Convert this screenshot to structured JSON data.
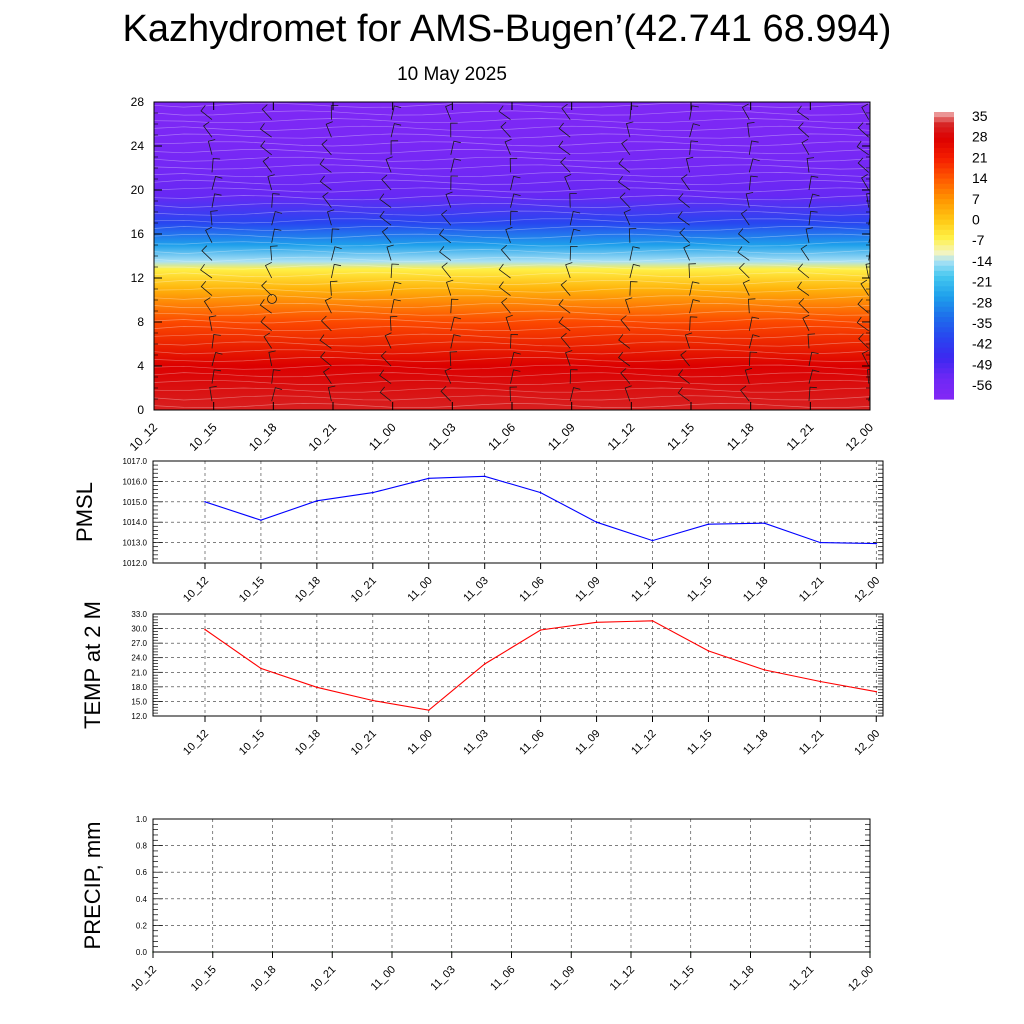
{
  "title": "Kazhydromet for AMS-Bugen’(42.741 68.994)",
  "subtitle": "10 May 2025",
  "time_labels": [
    "10_12",
    "10_15",
    "10_18",
    "10_21",
    "11_00",
    "11_03",
    "11_06",
    "11_09",
    "11_12",
    "11_15",
    "11_18",
    "11_21",
    "12_00"
  ],
  "chart_data": [
    {
      "type": "heatmap",
      "name": "temperature-height-section",
      "x": [
        "10_12",
        "10_15",
        "10_18",
        "10_21",
        "11_00",
        "11_03",
        "11_06",
        "11_09",
        "11_12",
        "11_15",
        "11_18",
        "11_21",
        "12_00"
      ],
      "ylim": [
        0,
        28
      ],
      "yticks": [
        0,
        4,
        8,
        12,
        16,
        20,
        24,
        28
      ],
      "colorbar": {
        "labels": [
          35,
          28,
          21,
          14,
          7,
          0,
          -7,
          -14,
          -21,
          -28,
          -35,
          -42,
          -49,
          -56
        ],
        "range": [
          -63,
          35
        ]
      },
      "profile": [
        {
          "y": 0,
          "value": 30
        },
        {
          "y": 4,
          "value": 26
        },
        {
          "y": 8,
          "value": 14
        },
        {
          "y": 11,
          "value": 1
        },
        {
          "y": 12.8,
          "value": -8
        },
        {
          "y": 13.5,
          "value": -16
        },
        {
          "y": 15,
          "value": -28
        },
        {
          "y": 17,
          "value": -42
        },
        {
          "y": 19.5,
          "value": -55
        },
        {
          "y": 22,
          "value": -58
        },
        {
          "y": 24,
          "value": -60
        },
        {
          "y": 28,
          "value": -62
        }
      ],
      "wind_barbs": true
    },
    {
      "type": "line",
      "name": "pmsl",
      "ylabel": "PMSL",
      "ylim": [
        1012.0,
        1017.0
      ],
      "yticks": [
        "1012.0",
        "1013.0",
        "1014.0",
        "1015.0",
        "1016.0",
        "1017.0"
      ],
      "x": [
        "10_12",
        "10_15",
        "10_18",
        "10_21",
        "11_00",
        "11_03",
        "11_06",
        "11_09",
        "11_12",
        "11_15",
        "11_18",
        "11_21",
        "12_00"
      ],
      "values": [
        1015.0,
        1014.1,
        1015.05,
        1015.45,
        1016.15,
        1016.25,
        1015.45,
        1014.0,
        1013.1,
        1013.9,
        1013.95,
        1013.0,
        1012.95
      ],
      "color": "#0000ff",
      "grid": true
    },
    {
      "type": "line",
      "name": "temp-2m",
      "ylabel": "TEMP at 2 M",
      "ylim": [
        12.0,
        33.0
      ],
      "yticks": [
        "12.0",
        "15.0",
        "18.0",
        "21.0",
        "24.0",
        "27.0",
        "30.0",
        "33.0"
      ],
      "x": [
        "10_12",
        "10_15",
        "10_18",
        "10_21",
        "11_00",
        "11_03",
        "11_06",
        "11_09",
        "11_12",
        "11_15",
        "11_18",
        "11_21",
        "12_00"
      ],
      "values": [
        29.8,
        21.8,
        17.9,
        15.2,
        13.2,
        22.7,
        29.7,
        31.3,
        31.6,
        25.4,
        21.5,
        19.1,
        17.0
      ],
      "color": "#ff0000",
      "grid": true
    },
    {
      "type": "line",
      "name": "precip",
      "ylabel": "PRECIP, mm",
      "ylim": [
        0.0,
        1.0
      ],
      "yticks": [
        "0.0",
        "0.2",
        "0.4",
        "0.6",
        "0.8",
        "1.0"
      ],
      "x": [
        "10_12",
        "10_15",
        "10_18",
        "10_21",
        "11_00",
        "11_03",
        "11_06",
        "11_09",
        "11_12",
        "11_15",
        "11_18",
        "11_21",
        "12_00"
      ],
      "values": [
        0,
        0,
        0,
        0,
        0,
        0,
        0,
        0,
        0,
        0,
        0,
        0,
        0
      ],
      "color": "#006400",
      "grid": true
    }
  ]
}
